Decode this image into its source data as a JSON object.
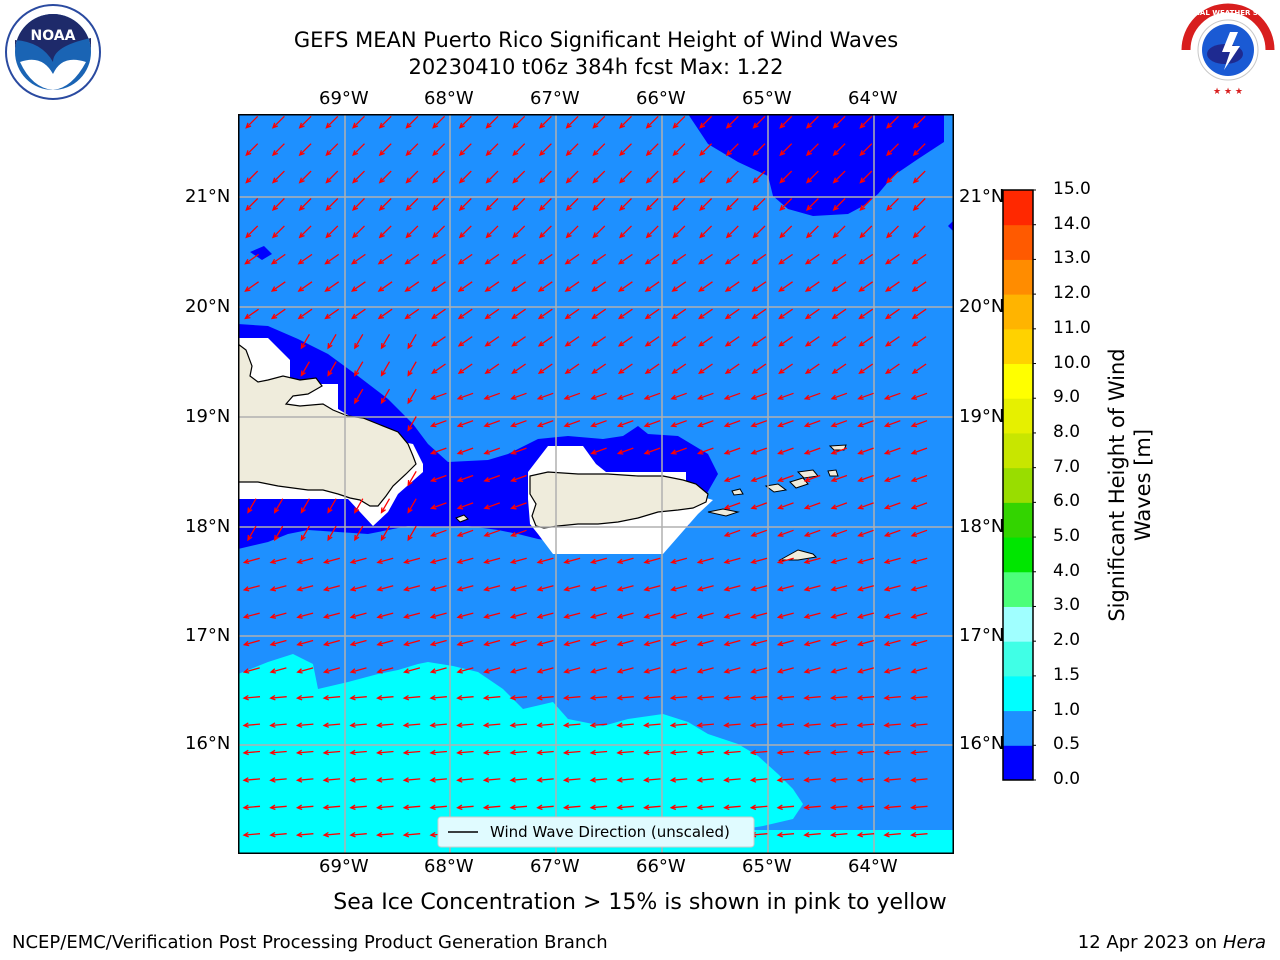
{
  "title": {
    "line1": "GEFS MEAN Puerto Rico Significant Height of Wind Waves",
    "line2": "20230410 t06z 384h fcst   Max: 1.22"
  },
  "lon_labels": [
    "69°W",
    "68°W",
    "67°W",
    "66°W",
    "65°W",
    "64°W"
  ],
  "lat_labels": [
    "21°N",
    "20°N",
    "19°N",
    "18°N",
    "17°N",
    "16°N"
  ],
  "legend_label": "Wind Wave Direction (unscaled)",
  "colorbar": {
    "title": "Significant Height of Wind Waves [m]",
    "title_line1": "Significant Height of Wind",
    "title_line2": "Waves [m]",
    "levels": [
      "0.0",
      "0.5",
      "1.0",
      "1.5",
      "2.0",
      "3.0",
      "4.0",
      "5.0",
      "6.0",
      "7.0",
      "8.0",
      "9.0",
      "10.0",
      "11.0",
      "12.0",
      "13.0",
      "14.0",
      "15.0"
    ],
    "colors": [
      "#0000ff",
      "#1e90ff",
      "#00ffff",
      "#40ffe6",
      "#a0ffff",
      "#4cff7a",
      "#00e600",
      "#33d400",
      "#99dd00",
      "#c8e600",
      "#e6f000",
      "#ffff00",
      "#ffd200",
      "#ffb400",
      "#ff8c00",
      "#ff5a00",
      "#ff2800"
    ]
  },
  "subtitle": "Sea Ice Concentration > 15% is shown in pink to yellow",
  "footer": {
    "left": "NCEP/EMC/Verification Post Processing Product Generation Branch",
    "right_prefix": "12 Apr 2023 on ",
    "right_italic": "Hera"
  },
  "logos": {
    "left": "NOAA",
    "right": "NATIONAL WEATHER SERVICE"
  },
  "colors": {
    "band_0_05": "#0000ff",
    "band_05_10": "#1e90ff",
    "band_10_15": "#00ffff",
    "land": "#efecdc",
    "arrows": "#ff0000"
  }
}
